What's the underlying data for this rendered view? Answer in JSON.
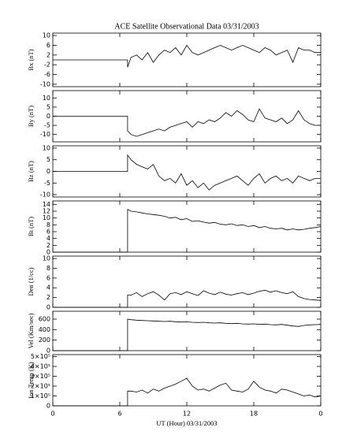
{
  "chart_data": [
    {
      "type": "line",
      "title": "ACE Satellite Observational Data  03/31/2003",
      "ylabel": "Bx (nT)",
      "color": "#000000",
      "x": [
        0,
        6.7,
        6.7,
        7,
        7.5,
        8,
        8.5,
        9,
        9.5,
        10,
        10.5,
        11,
        11.5,
        12,
        12.5,
        13,
        13.5,
        14,
        14.5,
        15,
        15.5,
        16,
        16.5,
        17,
        17.5,
        18,
        18.5,
        19,
        19.5,
        20,
        20.5,
        21,
        21.5,
        22,
        22.5,
        23,
        23.5,
        24
      ],
      "values": [
        0,
        0,
        -3,
        1,
        2,
        0,
        3,
        -1,
        2,
        4,
        3,
        5,
        2,
        6,
        3,
        2,
        3,
        4,
        5,
        6,
        5,
        4,
        5,
        6,
        5,
        4,
        3,
        5,
        4,
        2,
        3,
        4,
        -1,
        5,
        4,
        4,
        3,
        3
      ],
      "xlim": [
        0,
        24
      ],
      "xticks": [
        0,
        6,
        12,
        18,
        {
          "value": 24,
          "label": "0"
        }
      ],
      "ylim": [
        -11,
        11
      ],
      "yticks": [
        -10,
        -6,
        -2,
        2,
        6,
        10
      ]
    },
    {
      "type": "line",
      "ylabel": "By (nT)",
      "color": "#000000",
      "x": [
        0,
        6.7,
        6.7,
        7,
        7.5,
        8,
        8.5,
        9,
        9.5,
        10,
        10.5,
        11,
        11.5,
        12,
        12.5,
        13,
        13.5,
        14,
        14.5,
        15,
        15.5,
        16,
        16.5,
        17,
        17.5,
        18,
        18.5,
        19,
        19.5,
        20,
        20.5,
        21,
        21.5,
        22,
        22.5,
        23,
        23.5,
        24
      ],
      "values": [
        0,
        0,
        -8,
        -10,
        -11,
        -10,
        -9,
        -8,
        -7,
        -8,
        -6,
        -5,
        -4,
        -3,
        -6,
        -3,
        -4,
        -2,
        -3,
        -1,
        2,
        0,
        3,
        1,
        -2,
        -3,
        4,
        -1,
        -2,
        -3,
        -1,
        -4,
        -2,
        3,
        -2,
        -4,
        -5,
        -5
      ],
      "xlim": [
        0,
        24
      ],
      "xticks": [
        0,
        6,
        12,
        18,
        {
          "value": 24,
          "label": "0"
        }
      ],
      "ylim": [
        -14,
        14
      ],
      "yticks": [
        -10,
        -5,
        0,
        5,
        10
      ]
    },
    {
      "type": "line",
      "ylabel": "Bz (nT)",
      "color": "#000000",
      "x": [
        0,
        6.7,
        6.7,
        7,
        7.5,
        8,
        8.5,
        9,
        9.5,
        10,
        10.5,
        11,
        11.5,
        12,
        12.5,
        13,
        13.5,
        14,
        14.5,
        15,
        15.5,
        16,
        16.5,
        17,
        17.5,
        18,
        18.5,
        19,
        19.5,
        20,
        20.5,
        21,
        21.5,
        22,
        22.5,
        23,
        23.5,
        24
      ],
      "values": [
        0,
        0,
        7,
        5,
        3,
        2,
        1,
        3,
        -2,
        -4,
        -3,
        -5,
        -1,
        -6,
        -4,
        -7,
        -5,
        -8,
        -6,
        -5,
        -4,
        -3,
        -2,
        -4,
        -6,
        -3,
        -1,
        -5,
        -3,
        -2,
        -4,
        -3,
        -5,
        -2,
        -3,
        -4,
        -3,
        -3
      ],
      "xlim": [
        0,
        24
      ],
      "xticks": [
        0,
        6,
        12,
        18,
        {
          "value": 24,
          "label": "0"
        }
      ],
      "ylim": [
        -11,
        11
      ],
      "yticks": [
        -10,
        -5,
        0,
        5,
        10
      ]
    },
    {
      "type": "line",
      "ylabel": "Bt (nT)",
      "color": "#000000",
      "x": [
        0,
        6.7,
        6.7,
        7,
        7.5,
        8,
        8.5,
        9,
        9.5,
        10,
        10.5,
        11,
        11.5,
        12,
        12.5,
        13,
        13.5,
        14,
        14.5,
        15,
        15.5,
        16,
        16.5,
        17,
        17.5,
        18,
        18.5,
        19,
        19.5,
        20,
        20.5,
        21,
        21.5,
        22,
        22.5,
        23,
        23.5,
        24
      ],
      "values": [
        0,
        0,
        12.5,
        12,
        11.8,
        11.5,
        11.2,
        11,
        10.8,
        10.5,
        10,
        10.2,
        9.5,
        9.8,
        9,
        9.2,
        8.8,
        8.5,
        8.7,
        8.2,
        8,
        8.3,
        7.8,
        8,
        7.5,
        7.8,
        7.2,
        7.5,
        7,
        6.8,
        7,
        6.5,
        6.8,
        6.5,
        6.7,
        7,
        7.2,
        7.5
      ],
      "xlim": [
        0,
        24
      ],
      "xticks": [
        0,
        6,
        12,
        18,
        {
          "value": 24,
          "label": "0"
        }
      ],
      "ylim": [
        0,
        15
      ],
      "yticks": [
        0,
        2,
        4,
        6,
        8,
        10,
        12,
        14
      ]
    },
    {
      "type": "line",
      "ylabel": "Den (1/cc)",
      "color": "#000000",
      "x": [
        0,
        6.7,
        6.7,
        7,
        7.5,
        8,
        8.5,
        9,
        9.5,
        10,
        10.5,
        11,
        11.5,
        12,
        12.5,
        13,
        13.5,
        14,
        14.5,
        15,
        15.5,
        16,
        16.5,
        17,
        17.5,
        18,
        18.5,
        19,
        19.5,
        20,
        20.5,
        21,
        21.5,
        22,
        22.5,
        23,
        23.5,
        24
      ],
      "values": [
        0,
        0,
        2.5,
        2.5,
        3,
        2.2,
        2.8,
        3.2,
        2.5,
        1.5,
        2.8,
        3,
        2.6,
        3.2,
        2.8,
        2.4,
        3.4,
        2.9,
        2.6,
        3.1,
        2.7,
        2.5,
        2.8,
        3,
        2.6,
        2.9,
        3.3,
        3.5,
        3.1,
        3.4,
        3,
        2.8,
        3.2,
        2.2,
        1.8,
        1.6,
        1.5,
        1.4
      ],
      "xlim": [
        0,
        24
      ],
      "xticks": [
        0,
        6,
        12,
        18,
        {
          "value": 24,
          "label": "0"
        }
      ],
      "ylim": [
        0,
        10.5
      ],
      "yticks": [
        0,
        2,
        4,
        6,
        8,
        10
      ]
    },
    {
      "type": "line",
      "ylabel": "Vel (Km/sec)",
      "color": "#000000",
      "x": [
        0,
        6.7,
        6.7,
        7,
        7.5,
        8,
        8.5,
        9,
        9.5,
        10,
        10.5,
        11,
        11.5,
        12,
        12.5,
        13,
        13.5,
        14,
        14.5,
        15,
        15.5,
        16,
        16.5,
        17,
        17.5,
        18,
        18.5,
        19,
        19.5,
        20,
        20.5,
        21,
        21.5,
        22,
        22.5,
        23,
        23.5,
        24
      ],
      "values": [
        0,
        0,
        600,
        590,
        580,
        575,
        570,
        565,
        560,
        555,
        560,
        550,
        545,
        548,
        540,
        535,
        540,
        530,
        525,
        530,
        520,
        515,
        520,
        510,
        505,
        510,
        500,
        505,
        495,
        490,
        500,
        485,
        470,
        460,
        480,
        490,
        495,
        500
      ],
      "xlim": [
        0,
        24
      ],
      "xticks": [
        0,
        6,
        12,
        18,
        {
          "value": 24,
          "label": "0"
        }
      ],
      "ylim": [
        0,
        750
      ],
      "yticks": [
        0,
        200,
        400,
        600
      ]
    },
    {
      "type": "line",
      "ylabel": "Ion Temp (K)",
      "xlabel": "UT (Hour)  03/31/2003",
      "color": "#000000",
      "x": [
        0,
        6.7,
        6.7,
        7,
        7.5,
        8,
        8.5,
        9,
        9.5,
        10,
        10.5,
        11,
        11.5,
        12,
        12.5,
        13,
        13.5,
        14,
        14.5,
        15,
        15.5,
        16,
        16.5,
        17,
        17.5,
        18,
        18.5,
        19,
        19.5,
        20,
        20.5,
        21,
        21.5,
        22,
        22.5,
        23,
        23.5,
        24
      ],
      "values": [
        0,
        0,
        150000,
        150000,
        140000,
        160000,
        130000,
        170000,
        150000,
        180000,
        200000,
        220000,
        250000,
        280000,
        200000,
        160000,
        170000,
        150000,
        180000,
        210000,
        230000,
        160000,
        150000,
        140000,
        170000,
        250000,
        190000,
        160000,
        150000,
        130000,
        170000,
        160000,
        140000,
        120000,
        100000,
        110000,
        90000,
        100000
      ],
      "xlim": [
        0,
        24
      ],
      "xticks": [
        0,
        6,
        12,
        18,
        {
          "value": 24,
          "label": "0"
        }
      ],
      "ylim": [
        0,
        520000
      ],
      "yticks": [
        0,
        {
          "value": 100000,
          "label": "1×10⁵"
        },
        {
          "value": 200000,
          "label": "2×10⁵"
        },
        {
          "value": 300000,
          "label": "3×10⁵"
        },
        {
          "value": 400000,
          "label": "4×10⁵"
        },
        {
          "value": 500000,
          "label": "5×10⁵"
        }
      ]
    }
  ]
}
